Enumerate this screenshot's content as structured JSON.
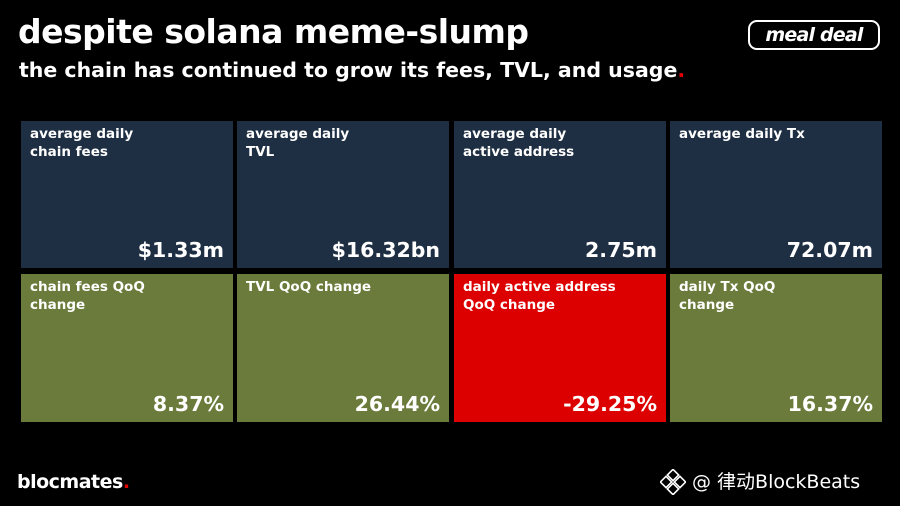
{
  "header": {
    "title": "despite solana meme-slump",
    "subtitle": "the chain has continued to grow its fees, TVL, and usage",
    "subtitle_dot": "."
  },
  "logo_text": "meal deal",
  "metrics": [
    {
      "label_lines": [
        "average daily",
        "chain fees"
      ],
      "value": "$1.33m",
      "color": "#1f2f43"
    },
    {
      "label_lines": [
        "average daily",
        "TVL"
      ],
      "value": "$16.32bn",
      "color": "#1f2f43"
    },
    {
      "label_lines": [
        "average daily",
        "active address"
      ],
      "value": "2.75m",
      "color": "#1f2f43"
    },
    {
      "label_lines": [
        "average daily Tx"
      ],
      "value": "72.07m",
      "color": "#1f2f43"
    }
  ],
  "changes": [
    {
      "label_lines": [
        "chain fees QoQ",
        "change"
      ],
      "value": "8.37%",
      "color": "#6b7b3b"
    },
    {
      "label_lines": [
        "TVL QoQ change"
      ],
      "value": "26.44%",
      "color": "#6b7b3b"
    },
    {
      "label_lines": [
        "daily active address",
        "QoQ change"
      ],
      "value": "-29.25%",
      "color": "#dd0000"
    },
    {
      "label_lines": [
        "daily Tx QoQ",
        "change"
      ],
      "value": "16.37%",
      "color": "#6b7b3b"
    }
  ],
  "footer": {
    "brand": "blocmates",
    "brand_dot": ".",
    "watermark_text": "@ 律动BlockBeats",
    "watermark_icon": "blockbeats-logo-icon"
  }
}
